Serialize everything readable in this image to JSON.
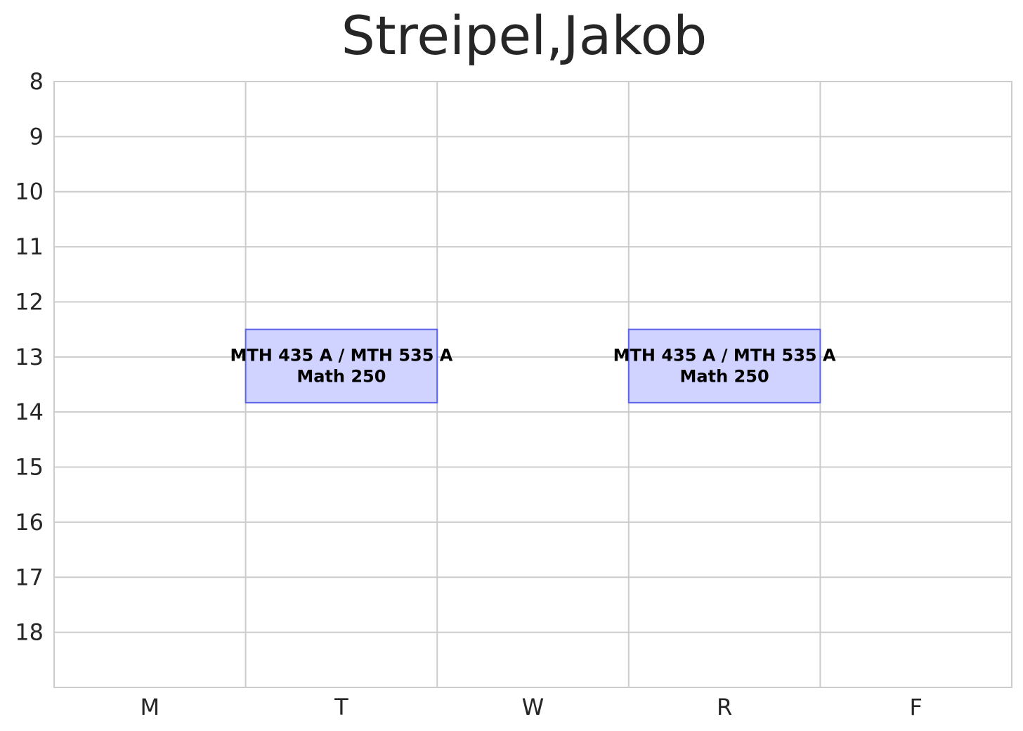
{
  "chart_data": {
    "type": "timetable",
    "title": "Streipel,Jakob",
    "days": [
      "M",
      "T",
      "W",
      "R",
      "F"
    ],
    "hour_ticks": [
      8,
      9,
      10,
      11,
      12,
      13,
      14,
      15,
      16,
      17,
      18
    ],
    "ylim": [
      8,
      19
    ],
    "grid": true,
    "events": [
      {
        "day": "T",
        "start": 12.5,
        "end": 13.83,
        "course": "MTH 435 A / MTH 535 A",
        "room": "Math 250"
      },
      {
        "day": "R",
        "start": 12.5,
        "end": 13.83,
        "course": "MTH 435 A / MTH 535 A",
        "room": "Math 250"
      }
    ],
    "colors": {
      "event_fill": "#d0d2ff",
      "event_edge": "#5c63e8",
      "grid": "#cccccc",
      "text": "#262626"
    }
  }
}
